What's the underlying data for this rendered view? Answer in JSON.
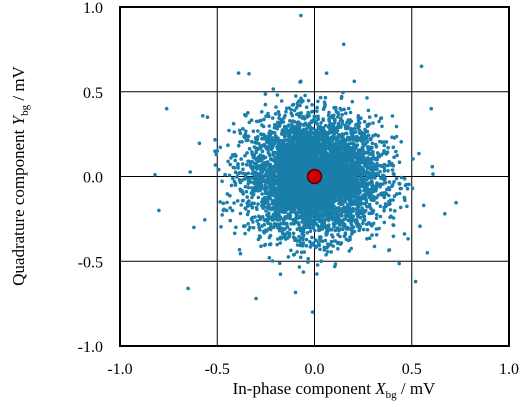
{
  "chart_data": {
    "type": "scatter",
    "title": "",
    "xlabel": {
      "pre": "In-phase component ",
      "var": "X",
      "sub": "bg",
      "post": " / mV"
    },
    "ylabel": {
      "pre": "Quadrature component ",
      "var": "Y",
      "sub": "bg",
      "post": " / mV"
    },
    "xlim": [
      -1.0,
      1.0
    ],
    "ylim": [
      -1.0,
      1.0
    ],
    "x_ticks": [
      "-1.0",
      "-0.5",
      "0.0",
      "0.5",
      "1.0"
    ],
    "y_ticks": [
      "1.0",
      "0.5",
      "0.0",
      "-0.5",
      "-1.0"
    ],
    "grid": true,
    "series": [
      {
        "color": "#1a7eab",
        "distribution": "gaussian cloud centered at origin",
        "std_x": 0.17,
        "std_y": 0.17,
        "approx_count": 5000,
        "outliers": [
          {
            "x": -0.82,
            "y": 0.01
          },
          {
            "x": -0.8,
            "y": -0.2
          },
          {
            "x": -0.76,
            "y": 0.4
          },
          {
            "x": -0.65,
            "y": -0.66
          },
          {
            "x": -0.62,
            "y": -0.3
          },
          {
            "x": -0.55,
            "y": 0.35
          },
          {
            "x": -0.39,
            "y": 0.61
          },
          {
            "x": -0.07,
            "y": 0.95
          },
          {
            "x": 0.15,
            "y": 0.78
          },
          {
            "x": -0.01,
            "y": -0.8
          },
          {
            "x": 0.6,
            "y": 0.4
          },
          {
            "x": 0.67,
            "y": -0.22
          },
          {
            "x": 0.52,
            "y": -0.62
          },
          {
            "x": 0.58,
            "y": -0.45
          },
          {
            "x": 0.55,
            "y": 0.65
          },
          {
            "x": -0.3,
            "y": -0.72
          }
        ]
      },
      {
        "color": "#cc0000",
        "points": [
          {
            "x": 0.0,
            "y": 0.0
          }
        ]
      }
    ]
  }
}
